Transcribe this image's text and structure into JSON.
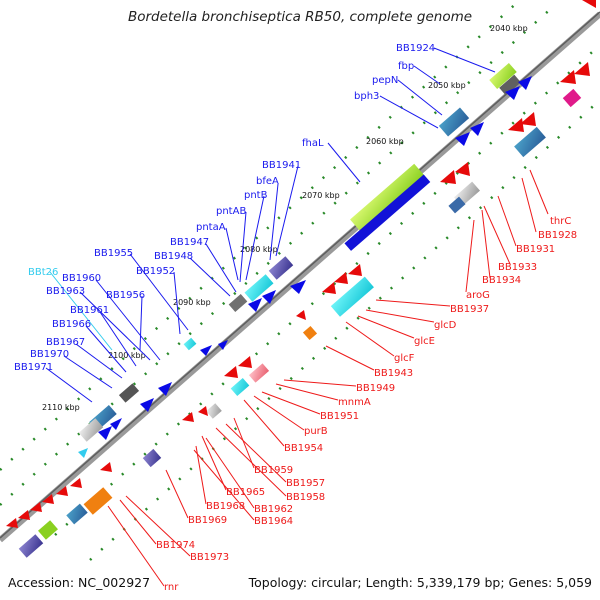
{
  "title": "Bordetella bronchiseptica RB50, complete genome",
  "footer": {
    "accession": "Accession: NC_002927",
    "stats": "Topology: circular; Length: 5,339,179 bp; Genes: 5,059"
  },
  "ruler": [
    "2040 kbp",
    "2050 kbp",
    "2060 kbp",
    "2070 kbp",
    "2080 kbp",
    "2090 kbp",
    "2100 kbp",
    "2110 kbp"
  ],
  "labels_forward": [
    "BB1924",
    "fbp",
    "pepN",
    "bph3",
    "fhaL",
    "BB1941",
    "bfeA",
    "pntB",
    "pntAB",
    "pntaA",
    "BB1947",
    "BB1948",
    "BB1952",
    "BB1955",
    "BB1960",
    "BB1956",
    "BB1963",
    "BB1961",
    "BB1966",
    "BB1967",
    "BB1970",
    "BB1971"
  ],
  "label_trna": "BBt26",
  "labels_reverse": [
    "thrC",
    "BB1928",
    "BB1931",
    "BB1933",
    "BB1934",
    "aroG",
    "BB1937",
    "glcD",
    "glcE",
    "glcF",
    "BB1943",
    "BB1949",
    "mnmA",
    "BB1951",
    "purB",
    "BB1954",
    "BB1959",
    "BB1957",
    "BB1958",
    "BB1965",
    "BB1962",
    "BB1968",
    "BB1964",
    "BB1969",
    "BB1974",
    "BB1973",
    "rnr"
  ],
  "colors": {
    "forward_cds": "#0a0ae6",
    "reverse_cds": "#e60a0a",
    "trna": "#33ccee",
    "backbone": "#8c8c8c",
    "tick": "#2a8a2a",
    "fhaL_fill": "#a4e02c"
  }
}
